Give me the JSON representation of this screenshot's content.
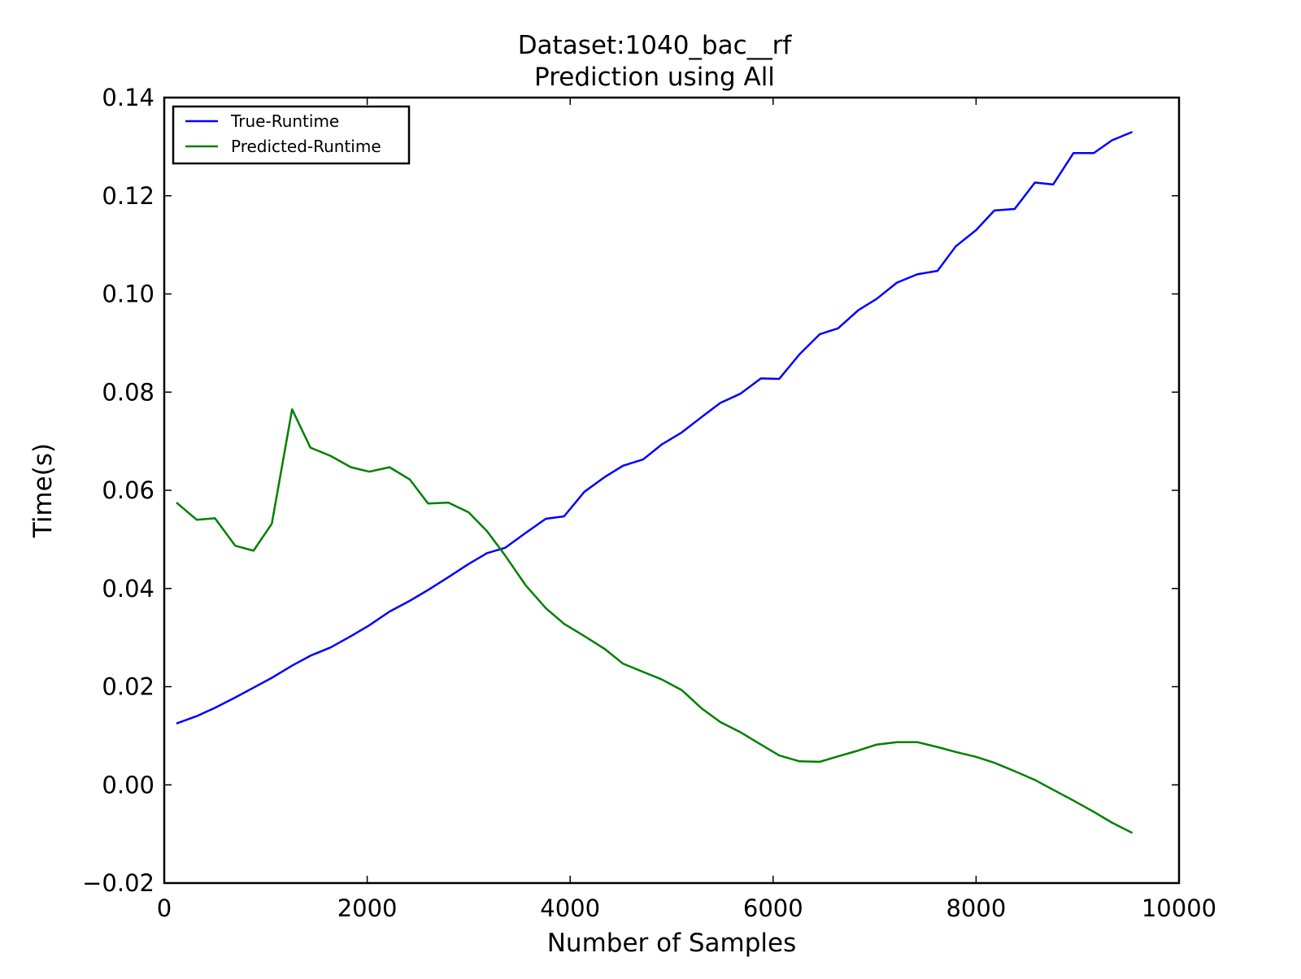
{
  "chart_data": {
    "type": "line",
    "title": "Dataset:1040_bac__rf",
    "subtitle": "Prediction using All",
    "xlabel": "Number of Samples",
    "ylabel": "Time(s)",
    "xlim": [
      0,
      10000
    ],
    "ylim": [
      -0.02,
      0.14
    ],
    "x_ticks": [
      0,
      2000,
      4000,
      6000,
      8000,
      10000
    ],
    "x_tick_labels": [
      "0",
      "2000",
      "4000",
      "6000",
      "8000",
      "10000"
    ],
    "y_ticks": [
      -0.02,
      0.0,
      0.02,
      0.04,
      0.06,
      0.08,
      0.1,
      0.12,
      0.14
    ],
    "y_tick_labels": [
      "−0.02",
      "0.00",
      "0.02",
      "0.04",
      "0.06",
      "0.08",
      "0.10",
      "0.12",
      "0.14"
    ],
    "grid": false,
    "legend_position": "upper-left",
    "x": [
      120,
      320,
      500,
      700,
      880,
      1060,
      1260,
      1440,
      1640,
      1840,
      2020,
      2220,
      2420,
      2600,
      2800,
      3000,
      3180,
      3360,
      3560,
      3760,
      3940,
      4140,
      4340,
      4520,
      4720,
      4900,
      5100,
      5300,
      5480,
      5680,
      5880,
      6060,
      6260,
      6460,
      6640,
      6840,
      7020,
      7220,
      7420,
      7620,
      7800,
      8000,
      8180,
      8380,
      8580,
      8760,
      8960,
      9160,
      9340,
      9540
    ],
    "series": [
      {
        "name": "True-Runtime",
        "color": "#0000ff",
        "values": [
          0.0125,
          0.014,
          0.0157,
          0.0178,
          0.0198,
          0.0218,
          0.0243,
          0.0263,
          0.028,
          0.0303,
          0.0325,
          0.0353,
          0.0375,
          0.0397,
          0.0423,
          0.045,
          0.0472,
          0.0483,
          0.0513,
          0.0542,
          0.0547,
          0.0597,
          0.0627,
          0.065,
          0.0663,
          0.0693,
          0.0718,
          0.075,
          0.0778,
          0.0797,
          0.0828,
          0.0827,
          0.0877,
          0.0918,
          0.093,
          0.0967,
          0.099,
          0.1023,
          0.104,
          0.1047,
          0.1097,
          0.113,
          0.117,
          0.1173,
          0.1227,
          0.1223,
          0.1287,
          0.1287,
          0.1313,
          0.133
        ]
      },
      {
        "name": "Predicted-Runtime",
        "color": "#008000",
        "values": [
          0.0575,
          0.054,
          0.0543,
          0.0487,
          0.0477,
          0.0532,
          0.0765,
          0.0687,
          0.067,
          0.0647,
          0.0638,
          0.0647,
          0.0622,
          0.0573,
          0.0575,
          0.0555,
          0.0517,
          0.0467,
          0.0407,
          0.036,
          0.0328,
          0.0303,
          0.0277,
          0.0247,
          0.023,
          0.0215,
          0.0193,
          0.0155,
          0.0128,
          0.0107,
          0.0082,
          0.006,
          0.0048,
          0.0047,
          0.0058,
          0.007,
          0.0082,
          0.0087,
          0.0087,
          0.0077,
          0.0067,
          0.0057,
          0.0045,
          0.0028,
          0.001,
          -0.001,
          -0.0032,
          -0.0055,
          -0.0077,
          -0.0098
        ]
      }
    ]
  }
}
